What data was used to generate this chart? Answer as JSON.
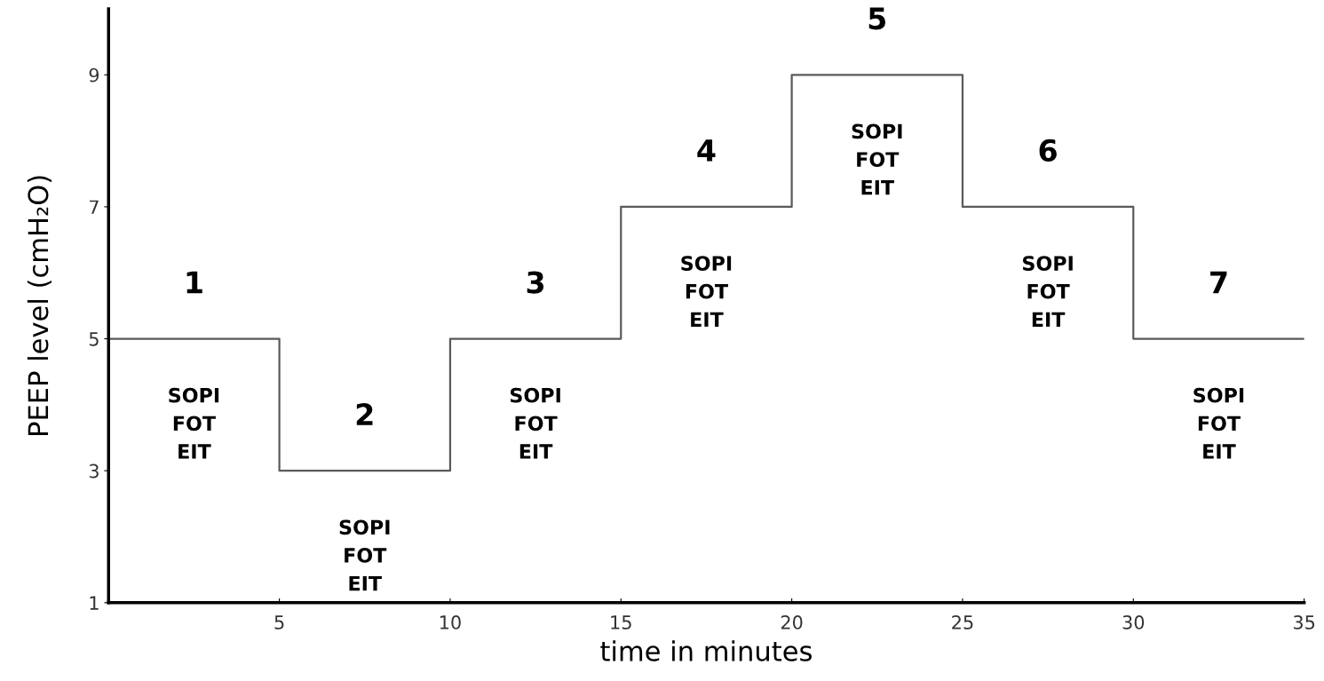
{
  "chart_data": {
    "type": "step",
    "xlabel": "time in minutes",
    "ylabel": "PEEP level (cmH₂O)",
    "x": [
      0,
      5,
      10,
      15,
      20,
      25,
      30,
      35
    ],
    "series": [
      {
        "color": "#5a5a5a",
        "values": [
          5,
          3,
          5,
          7,
          9,
          7,
          5,
          5
        ]
      }
    ],
    "xlim": [
      0,
      35
    ],
    "xticks": [
      5,
      10,
      15,
      20,
      25,
      30,
      35
    ],
    "ylim": [
      1,
      10
    ],
    "yticks": [
      1,
      3,
      5,
      7,
      9
    ],
    "grid": false,
    "marker": "none",
    "line_style": "solid",
    "annotations": [
      {
        "text": "1",
        "x": 2.5,
        "y": 5
      },
      {
        "text": "SOPI\nFOT\nEIT",
        "x": 2.5,
        "y": 5
      },
      {
        "text": "2",
        "x": 7.5,
        "y": 3
      },
      {
        "text": "SOPI\nFOT\nEIT",
        "x": 7.5,
        "y": 3
      },
      {
        "text": "3",
        "x": 12.5,
        "y": 5
      },
      {
        "text": "SOPI\nFOT\nEIT",
        "x": 12.5,
        "y": 5
      },
      {
        "text": "4",
        "x": 17.5,
        "y": 7
      },
      {
        "text": "SOPI\nFOT\nEIT",
        "x": 17.5,
        "y": 7
      },
      {
        "text": "5",
        "x": 22.5,
        "y": 9
      },
      {
        "text": "SOPI\nFOT\nEIT",
        "x": 22.5,
        "y": 9
      },
      {
        "text": "6",
        "x": 27.5,
        "y": 7
      },
      {
        "text": "SOPI\nFOT\nEIT",
        "x": 27.5,
        "y": 7
      },
      {
        "text": "7",
        "x": 32.5,
        "y": 5
      },
      {
        "text": "SOPI\nFOT\nEIT",
        "x": 32.5,
        "y": 5
      }
    ]
  }
}
